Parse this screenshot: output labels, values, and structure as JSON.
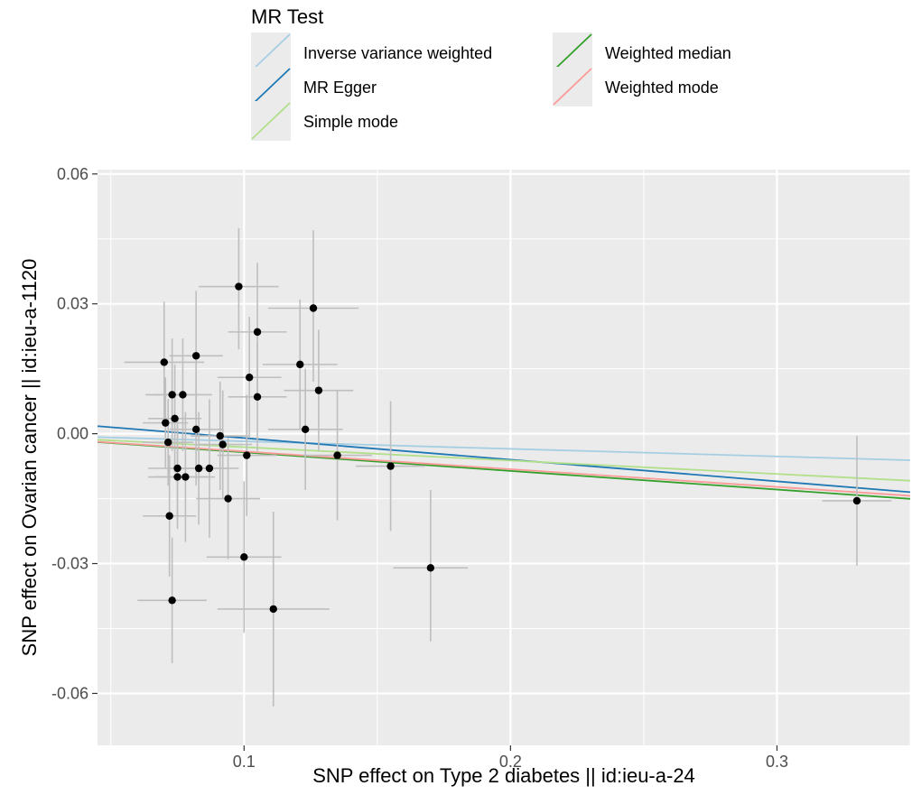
{
  "chart_data": {
    "type": "scatter",
    "xlabel": "SNP effect on Type 2 diabetes || id:ieu-a-24",
    "ylabel": "SNP effect on Ovarian cancer || id:ieu-a-1120",
    "xlim": [
      0.045,
      0.35
    ],
    "ylim": [
      -0.072,
      0.061
    ],
    "x_ticks": [
      0.1,
      0.2,
      0.3
    ],
    "x_tick_labels": [
      "0.1",
      "0.2",
      "0.3"
    ],
    "y_ticks": [
      -0.06,
      -0.03,
      0.0,
      0.03,
      0.06
    ],
    "y_tick_labels": [
      "-0.06",
      "-0.03",
      "0.00",
      "0.03",
      "0.06"
    ],
    "grid": true,
    "legend": {
      "title": "MR Test",
      "position": "top",
      "entries": [
        {
          "name": "Inverse variance weighted",
          "color": "#a6cee3"
        },
        {
          "name": "MR Egger",
          "color": "#1f78b4"
        },
        {
          "name": "Simple mode",
          "color": "#b2df8a"
        },
        {
          "name": "Weighted median",
          "color": "#33a02c"
        },
        {
          "name": "Weighted mode",
          "color": "#fb9a99"
        }
      ]
    },
    "lines": [
      {
        "name": "Inverse variance weighted",
        "color": "#a6cee3",
        "intercept": 0.0,
        "slope": -0.0175
      },
      {
        "name": "MR Egger",
        "color": "#1f78b4",
        "intercept": 0.004,
        "slope": -0.05
      },
      {
        "name": "Simple mode",
        "color": "#b2df8a",
        "intercept": 0.0,
        "slope": -0.031
      },
      {
        "name": "Weighted median",
        "color": "#33a02c",
        "intercept": 0.0,
        "slope": -0.043
      },
      {
        "name": "Weighted mode",
        "color": "#fb9a99",
        "intercept": 0.0,
        "slope": -0.041
      }
    ],
    "points": [
      {
        "x": 0.07,
        "y": 0.0165,
        "xlo": 0.055,
        "xhi": 0.085,
        "ylo": 0.003,
        "yhi": 0.0305
      },
      {
        "x": 0.0705,
        "y": 0.0025,
        "xlo": 0.062,
        "xhi": 0.079,
        "ylo": -0.008,
        "yhi": 0.013
      },
      {
        "x": 0.0715,
        "y": -0.002,
        "xlo": 0.062,
        "xhi": 0.081,
        "ylo": -0.012,
        "yhi": 0.008
      },
      {
        "x": 0.072,
        "y": -0.019,
        "xlo": 0.062,
        "xhi": 0.082,
        "ylo": -0.033,
        "yhi": -0.005
      },
      {
        "x": 0.073,
        "y": 0.009,
        "xlo": 0.063,
        "xhi": 0.083,
        "ylo": -0.004,
        "yhi": 0.022
      },
      {
        "x": 0.073,
        "y": -0.0385,
        "xlo": 0.06,
        "xhi": 0.086,
        "ylo": -0.053,
        "yhi": -0.024
      },
      {
        "x": 0.074,
        "y": 0.0035,
        "xlo": 0.064,
        "xhi": 0.084,
        "ylo": -0.009,
        "yhi": 0.016
      },
      {
        "x": 0.075,
        "y": -0.008,
        "xlo": 0.064,
        "xhi": 0.086,
        "ylo": -0.02,
        "yhi": 0.004
      },
      {
        "x": 0.075,
        "y": -0.01,
        "xlo": 0.064,
        "xhi": 0.086,
        "ylo": -0.022,
        "yhi": 0.002
      },
      {
        "x": 0.077,
        "y": 0.009,
        "xlo": 0.066,
        "xhi": 0.088,
        "ylo": -0.004,
        "yhi": 0.022
      },
      {
        "x": 0.078,
        "y": -0.01,
        "xlo": 0.067,
        "xhi": 0.089,
        "ylo": -0.025,
        "yhi": 0.005
      },
      {
        "x": 0.082,
        "y": 0.018,
        "xlo": 0.072,
        "xhi": 0.092,
        "ylo": 0.003,
        "yhi": 0.033
      },
      {
        "x": 0.082,
        "y": 0.001,
        "xlo": 0.072,
        "xhi": 0.092,
        "ylo": -0.012,
        "yhi": 0.014
      },
      {
        "x": 0.083,
        "y": -0.008,
        "xlo": 0.072,
        "xhi": 0.094,
        "ylo": -0.021,
        "yhi": 0.005
      },
      {
        "x": 0.087,
        "y": -0.008,
        "xlo": 0.076,
        "xhi": 0.098,
        "ylo": -0.024,
        "yhi": 0.008
      },
      {
        "x": 0.091,
        "y": -0.0005,
        "xlo": 0.08,
        "xhi": 0.102,
        "ylo": -0.013,
        "yhi": 0.012
      },
      {
        "x": 0.092,
        "y": -0.0025,
        "xlo": 0.081,
        "xhi": 0.103,
        "ylo": -0.015,
        "yhi": 0.01
      },
      {
        "x": 0.094,
        "y": -0.015,
        "xlo": 0.082,
        "xhi": 0.106,
        "ylo": -0.029,
        "yhi": -0.001
      },
      {
        "x": 0.098,
        "y": 0.034,
        "xlo": 0.083,
        "xhi": 0.113,
        "ylo": 0.0195,
        "yhi": 0.0475
      },
      {
        "x": 0.1,
        "y": -0.0285,
        "xlo": 0.086,
        "xhi": 0.114,
        "ylo": -0.046,
        "yhi": -0.011
      },
      {
        "x": 0.101,
        "y": -0.005,
        "xlo": 0.09,
        "xhi": 0.112,
        "ylo": -0.019,
        "yhi": 0.009
      },
      {
        "x": 0.102,
        "y": 0.013,
        "xlo": 0.09,
        "xhi": 0.114,
        "ylo": -0.001,
        "yhi": 0.027
      },
      {
        "x": 0.105,
        "y": 0.0235,
        "xlo": 0.094,
        "xhi": 0.116,
        "ylo": 0.009,
        "yhi": 0.0395
      },
      {
        "x": 0.105,
        "y": 0.0085,
        "xlo": 0.094,
        "xhi": 0.116,
        "ylo": -0.004,
        "yhi": 0.021
      },
      {
        "x": 0.111,
        "y": -0.0405,
        "xlo": 0.09,
        "xhi": 0.132,
        "ylo": -0.063,
        "yhi": -0.018
      },
      {
        "x": 0.121,
        "y": 0.016,
        "xlo": 0.107,
        "xhi": 0.135,
        "ylo": 0.001,
        "yhi": 0.031
      },
      {
        "x": 0.123,
        "y": 0.001,
        "xlo": 0.109,
        "xhi": 0.137,
        "ylo": -0.013,
        "yhi": 0.015
      },
      {
        "x": 0.126,
        "y": 0.029,
        "xlo": 0.109,
        "xhi": 0.143,
        "ylo": 0.012,
        "yhi": 0.047
      },
      {
        "x": 0.128,
        "y": 0.01,
        "xlo": 0.115,
        "xhi": 0.141,
        "ylo": -0.004,
        "yhi": 0.024
      },
      {
        "x": 0.135,
        "y": -0.005,
        "xlo": 0.122,
        "xhi": 0.148,
        "ylo": -0.02,
        "yhi": 0.01
      },
      {
        "x": 0.155,
        "y": -0.0075,
        "xlo": 0.142,
        "xhi": 0.168,
        "ylo": -0.0225,
        "yhi": 0.0075
      },
      {
        "x": 0.17,
        "y": -0.031,
        "xlo": 0.156,
        "xhi": 0.184,
        "ylo": -0.048,
        "yhi": -0.013
      },
      {
        "x": 0.33,
        "y": -0.0155,
        "xlo": 0.317,
        "xhi": 0.343,
        "ylo": -0.0305,
        "yhi": -0.0005
      }
    ]
  }
}
